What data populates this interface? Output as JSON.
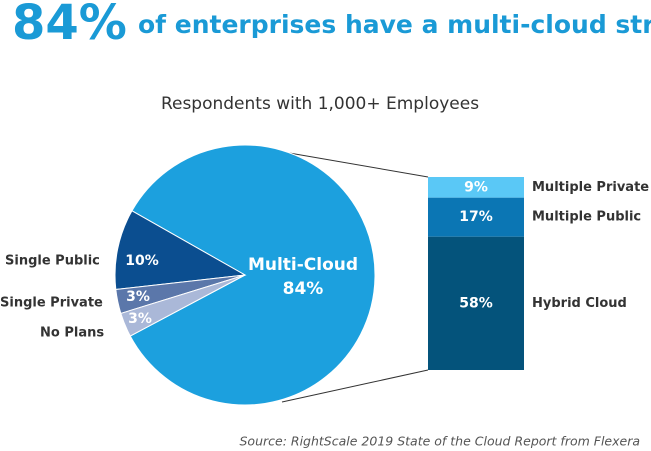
{
  "chart_data": [
    {
      "type": "pie",
      "headline": "84%",
      "title": "of enterprises have a multi-cloud strategy",
      "subtitle": "Respondents with 1,000+ Employees",
      "source": "Source: RightScale 2019 State of the Cloud Report from Flexera",
      "categories": [
        "Multi-Cloud",
        "Single Public",
        "Single Private",
        "No Plans"
      ],
      "values": [
        84,
        10,
        3,
        3
      ],
      "value_labels": [
        "84%",
        "10%",
        "3%",
        "3%"
      ],
      "colors": [
        "#1ca0de",
        "#0b4e90",
        "#5b77aa",
        "#aab8d8"
      ]
    },
    {
      "type": "bar",
      "categories": [
        "Multiple Private",
        "Multiple Public",
        "Hybrid Cloud"
      ],
      "values": [
        9,
        17,
        58
      ],
      "value_labels": [
        "9%",
        "17%",
        "58%"
      ],
      "colors": [
        "#5ac8f6",
        "#0b76b4",
        "#04537b"
      ]
    }
  ]
}
